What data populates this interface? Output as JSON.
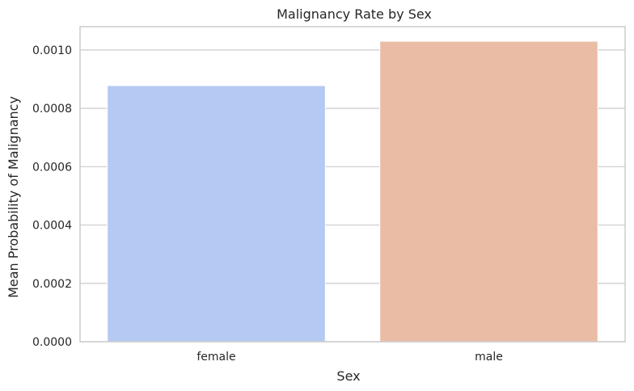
{
  "chart_data": {
    "type": "bar",
    "title": "Malignancy Rate by Sex",
    "xlabel": "Sex",
    "ylabel": "Mean Probability of Malignancy",
    "categories": [
      "female",
      "male"
    ],
    "values": [
      0.000878,
      0.00103
    ],
    "ylim": [
      0,
      0.00108
    ],
    "yticks": [
      0.0,
      0.0002,
      0.0004,
      0.0006,
      0.0008,
      0.001
    ],
    "ytick_labels": [
      "0.0000",
      "0.0002",
      "0.0004",
      "0.0006",
      "0.0008",
      "0.0010"
    ],
    "grid": "horizontal",
    "colors": [
      "#b5c9f2",
      "#ebbca5"
    ],
    "grid_color": "#cccccc",
    "spine_color": "#cccccc"
  }
}
